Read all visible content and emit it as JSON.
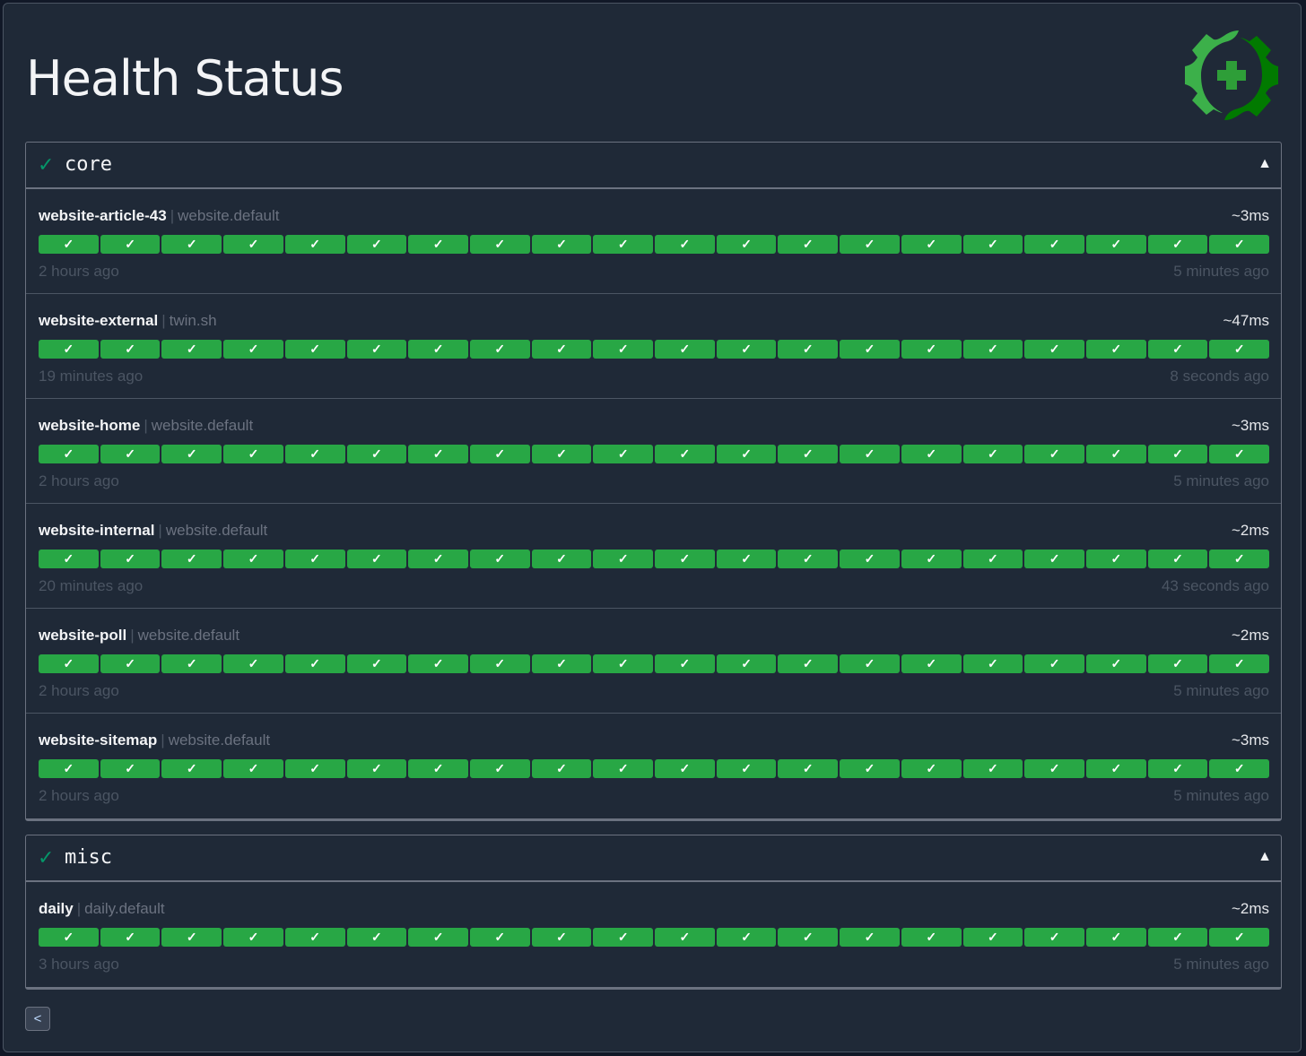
{
  "header": {
    "title": "Health Status",
    "logo_icon": "gear-health-cross-icon"
  },
  "colors": {
    "success": "#28a745",
    "group_check": "#059669",
    "logo_light": "#3cb04a",
    "logo_dark": "#017a00"
  },
  "groups": [
    {
      "name": "core",
      "status_icon": "✓",
      "toggle_icon": "▲",
      "endpoints": [
        {
          "name": "website-article-43",
          "group": "website.default",
          "response_time": "~3ms",
          "oldest": "2 hours ago",
          "newest": "5 minutes ago",
          "results": [
            "success",
            "success",
            "success",
            "success",
            "success",
            "success",
            "success",
            "success",
            "success",
            "success",
            "success",
            "success",
            "success",
            "success",
            "success",
            "success",
            "success",
            "success",
            "success",
            "success"
          ]
        },
        {
          "name": "website-external",
          "group": "twin.sh",
          "response_time": "~47ms",
          "oldest": "19 minutes ago",
          "newest": "8 seconds ago",
          "results": [
            "success",
            "success",
            "success",
            "success",
            "success",
            "success",
            "success",
            "success",
            "success",
            "success",
            "success",
            "success",
            "success",
            "success",
            "success",
            "success",
            "success",
            "success",
            "success",
            "success"
          ]
        },
        {
          "name": "website-home",
          "group": "website.default",
          "response_time": "~3ms",
          "oldest": "2 hours ago",
          "newest": "5 minutes ago",
          "results": [
            "success",
            "success",
            "success",
            "success",
            "success",
            "success",
            "success",
            "success",
            "success",
            "success",
            "success",
            "success",
            "success",
            "success",
            "success",
            "success",
            "success",
            "success",
            "success",
            "success"
          ]
        },
        {
          "name": "website-internal",
          "group": "website.default",
          "response_time": "~2ms",
          "oldest": "20 minutes ago",
          "newest": "43 seconds ago",
          "results": [
            "success",
            "success",
            "success",
            "success",
            "success",
            "success",
            "success",
            "success",
            "success",
            "success",
            "success",
            "success",
            "success",
            "success",
            "success",
            "success",
            "success",
            "success",
            "success",
            "success"
          ]
        },
        {
          "name": "website-poll",
          "group": "website.default",
          "response_time": "~2ms",
          "oldest": "2 hours ago",
          "newest": "5 minutes ago",
          "results": [
            "success",
            "success",
            "success",
            "success",
            "success",
            "success",
            "success",
            "success",
            "success",
            "success",
            "success",
            "success",
            "success",
            "success",
            "success",
            "success",
            "success",
            "success",
            "success",
            "success"
          ]
        },
        {
          "name": "website-sitemap",
          "group": "website.default",
          "response_time": "~3ms",
          "oldest": "2 hours ago",
          "newest": "5 minutes ago",
          "results": [
            "success",
            "success",
            "success",
            "success",
            "success",
            "success",
            "success",
            "success",
            "success",
            "success",
            "success",
            "success",
            "success",
            "success",
            "success",
            "success",
            "success",
            "success",
            "success",
            "success"
          ]
        }
      ]
    },
    {
      "name": "misc",
      "status_icon": "✓",
      "toggle_icon": "▲",
      "endpoints": [
        {
          "name": "daily",
          "group": "daily.default",
          "response_time": "~2ms",
          "oldest": "3 hours ago",
          "newest": "5 minutes ago",
          "results": [
            "success",
            "success",
            "success",
            "success",
            "success",
            "success",
            "success",
            "success",
            "success",
            "success",
            "success",
            "success",
            "success",
            "success",
            "success",
            "success",
            "success",
            "success",
            "success",
            "success"
          ]
        }
      ]
    }
  ],
  "result_icon": "✓",
  "pagination": {
    "previous_icon": "<"
  }
}
